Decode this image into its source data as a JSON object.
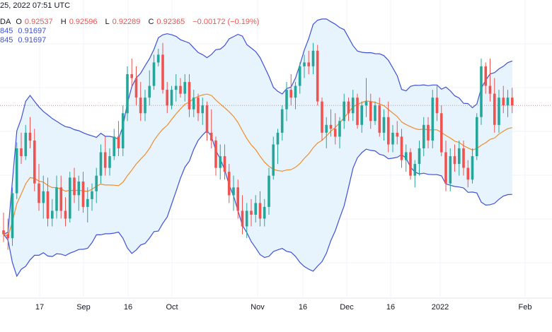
{
  "header": {
    "timestamp": "25, 2022 07:51 UTC",
    "symbol_fragment": "DA",
    "open_label": "O",
    "open": "0.92537",
    "high_label": "H",
    "high": "0.92596",
    "low_label": "L",
    "low": "0.92289",
    "close_label": "C",
    "close": "0.92365",
    "change": "−0.00172 (−0.19%)",
    "bb_upper_prefix": "845",
    "bb_upper_value": "0.91697",
    "bb_lower_prefix": "845",
    "bb_lower_value": "0.91697"
  },
  "colors": {
    "up": "#26a69a",
    "down": "#ef5350",
    "band_line": "#3f51d6",
    "band_fill": "#e3f2fd",
    "middle_line": "#f28c28",
    "grid": "#f0f3fa"
  },
  "chart_data": {
    "type": "candlestick",
    "title": "",
    "x_ticks": [
      "17",
      "Sep",
      "16",
      "Oct",
      "Nov",
      "16",
      "Dec",
      "16",
      "2022",
      "Feb"
    ],
    "series": [
      {
        "values": [
          [
            0.885,
            0.8895,
            0.882,
            0.884
          ],
          [
            0.884,
            0.888,
            0.88,
            0.883
          ],
          [
            0.883,
            0.896,
            0.881,
            0.8945
          ],
          [
            0.8945,
            0.9075,
            0.893,
            0.906
          ],
          [
            0.906,
            0.91,
            0.902,
            0.904
          ],
          [
            0.904,
            0.912,
            0.903,
            0.91
          ],
          [
            0.91,
            0.914,
            0.906,
            0.908
          ],
          [
            0.908,
            0.911,
            0.895,
            0.897
          ],
          [
            0.897,
            0.902,
            0.89,
            0.892
          ],
          [
            0.892,
            0.899,
            0.888,
            0.895
          ],
          [
            0.895,
            0.8985,
            0.886,
            0.888
          ],
          [
            0.888,
            0.893,
            0.886,
            0.89
          ],
          [
            0.89,
            0.899,
            0.888,
            0.896
          ],
          [
            0.896,
            0.899,
            0.888,
            0.89
          ],
          [
            0.89,
            0.8935,
            0.886,
            0.888
          ],
          [
            0.888,
            0.9,
            0.887,
            0.8985
          ],
          [
            0.8985,
            0.901,
            0.892,
            0.894
          ],
          [
            0.894,
            0.899,
            0.89,
            0.8975
          ],
          [
            0.8975,
            0.9,
            0.8895,
            0.891
          ],
          [
            0.891,
            0.896,
            0.887,
            0.893
          ],
          [
            0.893,
            0.897,
            0.89,
            0.895
          ],
          [
            0.895,
            0.901,
            0.892,
            0.899
          ],
          [
            0.899,
            0.907,
            0.897,
            0.905
          ],
          [
            0.905,
            0.909,
            0.899,
            0.901
          ],
          [
            0.901,
            0.906,
            0.899,
            0.904
          ],
          [
            0.904,
            0.911,
            0.903,
            0.909
          ],
          [
            0.909,
            0.913,
            0.904,
            0.906
          ],
          [
            0.906,
            0.917,
            0.904,
            0.915
          ],
          [
            0.915,
            0.927,
            0.913,
            0.925
          ],
          [
            0.925,
            0.929,
            0.922,
            0.924
          ],
          [
            0.924,
            0.927,
            0.917,
            0.919
          ],
          [
            0.919,
            0.923,
            0.913,
            0.915
          ],
          [
            0.915,
            0.921,
            0.913,
            0.919
          ],
          [
            0.919,
            0.926,
            0.917,
            0.922
          ],
          [
            0.922,
            0.93,
            0.921,
            0.928
          ],
          [
            0.928,
            0.9315,
            0.927,
            0.93
          ],
          [
            0.93,
            0.933,
            0.92,
            0.921
          ],
          [
            0.921,
            0.923,
            0.915,
            0.917
          ],
          [
            0.917,
            0.922,
            0.916,
            0.921
          ],
          [
            0.921,
            0.925,
            0.918,
            0.922
          ],
          [
            0.922,
            0.924,
            0.919,
            0.92
          ],
          [
            0.92,
            0.925,
            0.918,
            0.923
          ],
          [
            0.923,
            0.925,
            0.914,
            0.916
          ],
          [
            0.916,
            0.921,
            0.914,
            0.919
          ],
          [
            0.919,
            0.92,
            0.913,
            0.915
          ],
          [
            0.915,
            0.919,
            0.912,
            0.917
          ],
          [
            0.917,
            0.918,
            0.908,
            0.91
          ],
          [
            0.91,
            0.916,
            0.906,
            0.908
          ],
          [
            0.908,
            0.909,
            0.899,
            0.901
          ],
          [
            0.901,
            0.907,
            0.898,
            0.904
          ],
          [
            0.904,
            0.907,
            0.898,
            0.9
          ],
          [
            0.9,
            0.902,
            0.892,
            0.894
          ],
          [
            0.894,
            0.899,
            0.89,
            0.896
          ],
          [
            0.896,
            0.898,
            0.888,
            0.89
          ],
          [
            0.89,
            0.894,
            0.884,
            0.886
          ],
          [
            0.886,
            0.892,
            0.883,
            0.89
          ],
          [
            0.89,
            0.893,
            0.886,
            0.889
          ],
          [
            0.889,
            0.894,
            0.887,
            0.892
          ],
          [
            0.892,
            0.895,
            0.886,
            0.888
          ],
          [
            0.888,
            0.893,
            0.886,
            0.891
          ],
          [
            0.891,
            0.901,
            0.889,
            0.899
          ],
          [
            0.899,
            0.909,
            0.898,
            0.907
          ],
          [
            0.907,
            0.911,
            0.902,
            0.91
          ],
          [
            0.91,
            0.917,
            0.908,
            0.916
          ],
          [
            0.916,
            0.923,
            0.913,
            0.921
          ],
          [
            0.921,
            0.925,
            0.917,
            0.919
          ],
          [
            0.919,
            0.923,
            0.916,
            0.922
          ],
          [
            0.922,
            0.928,
            0.92,
            0.927
          ],
          [
            0.927,
            0.93,
            0.924,
            0.928
          ],
          [
            0.928,
            0.931,
            0.925,
            0.927
          ],
          [
            0.927,
            0.933,
            0.925,
            0.931
          ],
          [
            0.931,
            0.9325,
            0.917,
            0.918
          ],
          [
            0.918,
            0.919,
            0.908,
            0.91
          ],
          [
            0.91,
            0.914,
            0.906,
            0.912
          ],
          [
            0.912,
            0.916,
            0.909,
            0.911
          ],
          [
            0.911,
            0.915,
            0.907,
            0.909
          ],
          [
            0.909,
            0.914,
            0.906,
            0.913
          ],
          [
            0.913,
            0.92,
            0.911,
            0.918
          ],
          [
            0.918,
            0.919,
            0.913,
            0.915
          ],
          [
            0.915,
            0.921,
            0.913,
            0.919
          ],
          [
            0.919,
            0.92,
            0.911,
            0.912
          ],
          [
            0.912,
            0.918,
            0.91,
            0.917
          ],
          [
            0.917,
            0.924,
            0.914,
            0.918
          ],
          [
            0.918,
            0.92,
            0.911,
            0.913
          ],
          [
            0.913,
            0.918,
            0.912,
            0.917
          ],
          [
            0.917,
            0.919,
            0.909,
            0.91
          ],
          [
            0.91,
            0.916,
            0.908,
            0.914
          ],
          [
            0.914,
            0.918,
            0.905,
            0.907
          ],
          [
            0.907,
            0.912,
            0.905,
            0.91
          ],
          [
            0.91,
            0.913,
            0.907,
            0.909
          ],
          [
            0.909,
            0.911,
            0.901,
            0.903
          ],
          [
            0.903,
            0.907,
            0.9,
            0.905
          ],
          [
            0.905,
            0.906,
            0.898,
            0.899
          ],
          [
            0.899,
            0.903,
            0.896,
            0.902
          ],
          [
            0.902,
            0.908,
            0.899,
            0.906
          ],
          [
            0.906,
            0.914,
            0.904,
            0.912
          ],
          [
            0.912,
            0.914,
            0.906,
            0.908
          ],
          [
            0.908,
            0.921,
            0.906,
            0.919
          ],
          [
            0.919,
            0.922,
            0.913,
            0.915
          ],
          [
            0.915,
            0.917,
            0.904,
            0.905
          ],
          [
            0.905,
            0.908,
            0.895,
            0.897
          ],
          [
            0.897,
            0.906,
            0.895,
            0.904
          ],
          [
            0.904,
            0.907,
            0.9,
            0.902
          ],
          [
            0.902,
            0.908,
            0.899,
            0.906
          ],
          [
            0.906,
            0.908,
            0.899,
            0.901
          ],
          [
            0.901,
            0.903,
            0.896,
            0.898
          ],
          [
            0.898,
            0.906,
            0.897,
            0.904
          ],
          [
            0.904,
            0.915,
            0.903,
            0.914
          ],
          [
            0.914,
            0.929,
            0.912,
            0.927
          ],
          [
            0.927,
            0.928,
            0.92,
            0.922
          ],
          [
            0.922,
            0.929,
            0.918,
            0.92
          ],
          [
            0.92,
            0.924,
            0.91,
            0.912
          ],
          [
            0.912,
            0.921,
            0.91,
            0.919
          ],
          [
            0.919,
            0.922,
            0.915,
            0.917
          ],
          [
            0.917,
            0.921,
            0.914,
            0.919
          ],
          [
            0.919,
            0.9215,
            0.915,
            0.917
          ]
        ]
      }
    ],
    "y_range": [
      0.868,
      0.944
    ]
  }
}
